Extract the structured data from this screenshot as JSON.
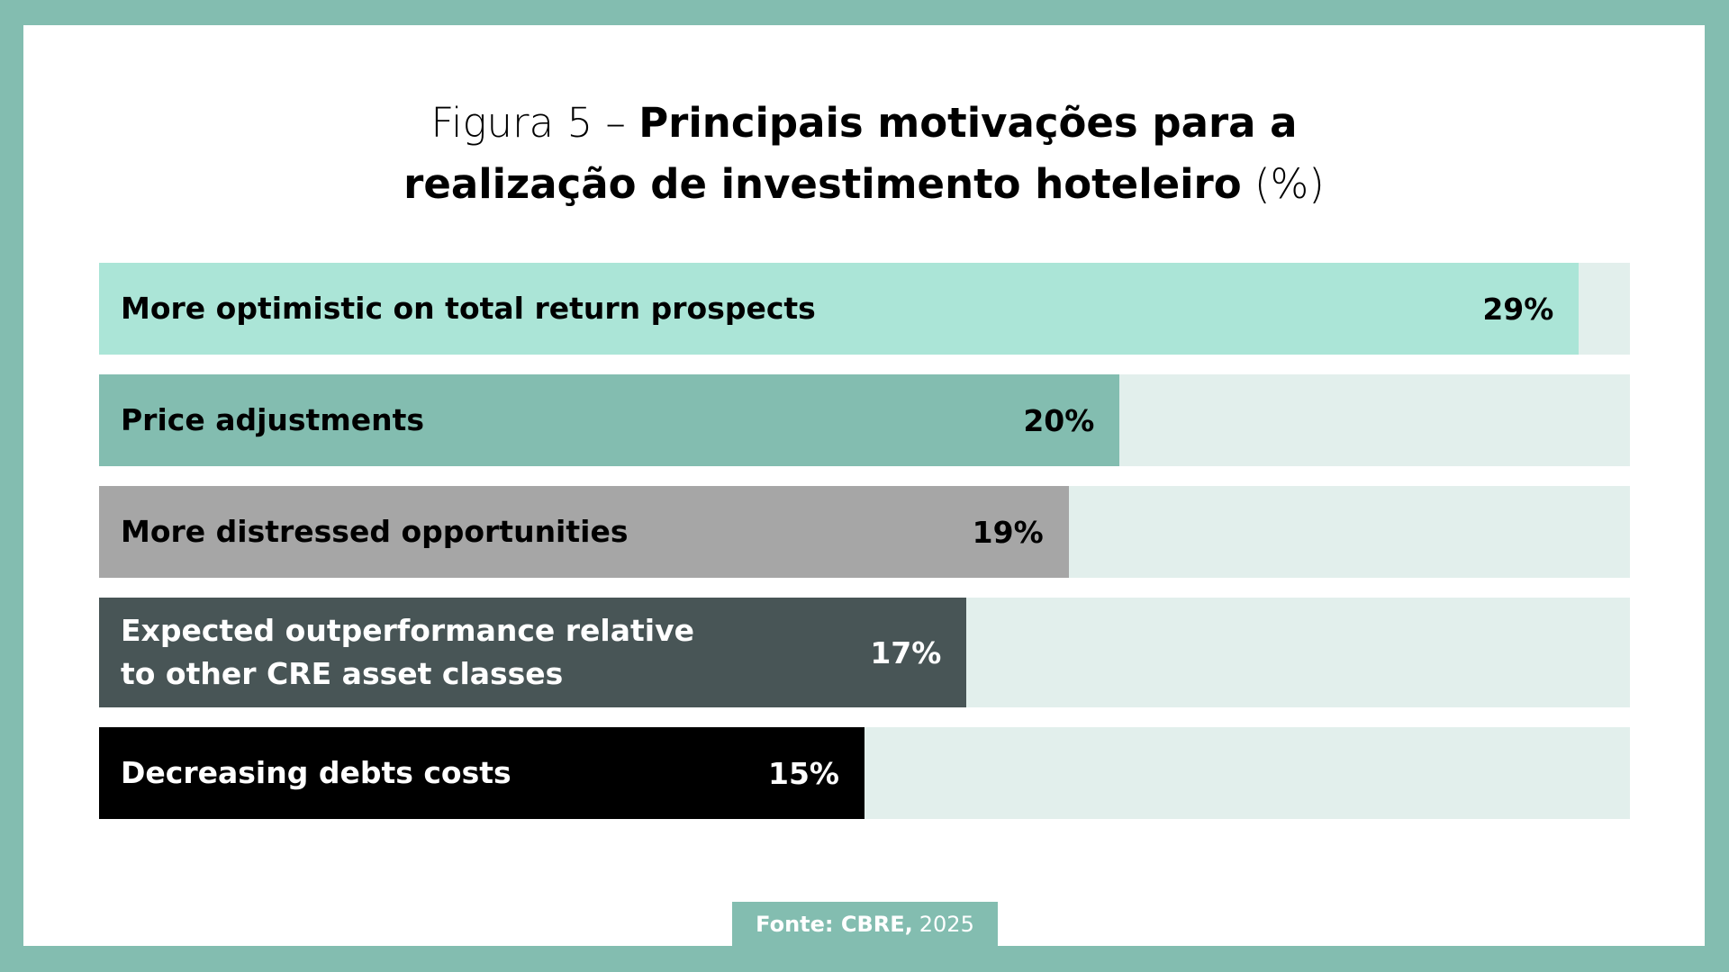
{
  "title": {
    "prefix": "Figura 5 –",
    "bold_line1": "Principais motivações para a",
    "bold_line2": "realização de investimento hoteleiro",
    "suffix": "(%)"
  },
  "chart_data": {
    "type": "bar",
    "orientation": "horizontal",
    "categories": [
      "More optimistic on total return prospects",
      "Price adjustments",
      "More distressed opportunities",
      "Expected outperformance relative\nto other CRE asset classes",
      "Decreasing debts costs"
    ],
    "values": [
      29,
      20,
      19,
      17,
      15
    ],
    "value_labels": [
      "29%",
      "20%",
      "19%",
      "17%",
      "15%"
    ],
    "value_unit": "%",
    "xlim": [
      0,
      30
    ],
    "colors": [
      "#abe5d7",
      "#83bdb0",
      "#a6a6a6",
      "#485556",
      "#000000"
    ],
    "label_colors": [
      "#000000",
      "#000000",
      "#000000",
      "#ffffff",
      "#ffffff"
    ],
    "track_color": "#e2efec",
    "grid": false
  },
  "source": {
    "bold": "Fonte: CBRE,",
    "year": "2025"
  }
}
